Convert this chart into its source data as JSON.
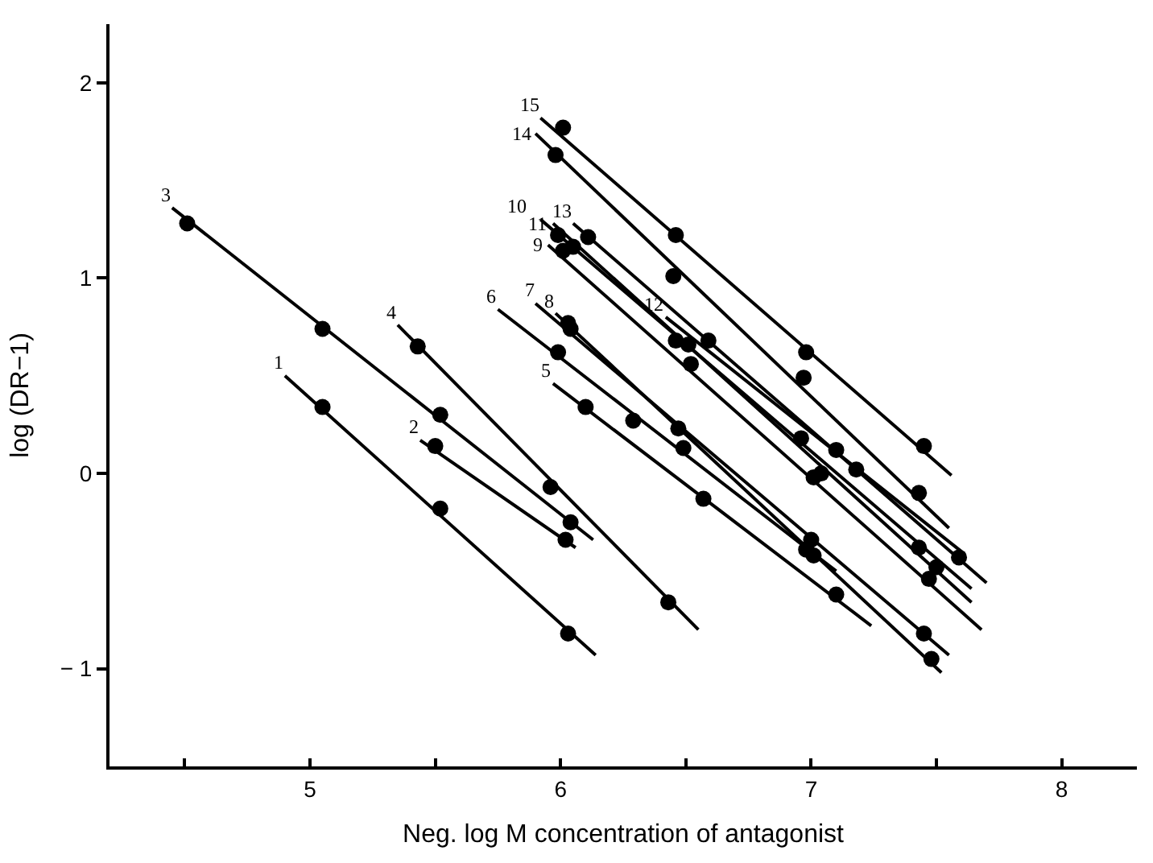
{
  "chart_data": {
    "type": "scatter",
    "xlabel": "Neg. log M concentration of antagonist",
    "ylabel": "log (DR−1)",
    "xlim": [
      4.2,
      8.3
    ],
    "ylim": [
      -1.5,
      2.3
    ],
    "xticks": [
      {
        "value": 4.5,
        "label": null
      },
      5,
      {
        "value": 5.5,
        "label": null
      },
      6,
      {
        "value": 6.5,
        "label": null
      },
      7,
      {
        "value": 7.5,
        "label": null
      },
      8
    ],
    "yticks": [
      -1,
      0,
      1,
      2
    ],
    "marker": "circle",
    "series": [
      {
        "name": "1",
        "type": "line",
        "marker": "none",
        "color": "#000000",
        "x": [
          4.9,
          6.14
        ],
        "values": [
          0.5,
          -0.93
        ]
      },
      {
        "color": "#000000",
        "x": [
          5.05,
          5.52,
          6.03
        ],
        "values": [
          0.34,
          -0.18,
          -0.82
        ]
      },
      {
        "name": "2",
        "type": "line",
        "marker": "none",
        "color": "#000000",
        "x": [
          5.44,
          6.06
        ],
        "values": [
          0.17,
          -0.38
        ]
      },
      {
        "color": "#000000",
        "x": [
          5.5,
          6.02
        ],
        "values": [
          0.14,
          -0.34
        ]
      },
      {
        "name": "3",
        "type": "line",
        "marker": "none",
        "color": "#000000",
        "x": [
          4.45,
          6.13
        ],
        "values": [
          1.36,
          -0.34
        ]
      },
      {
        "color": "#000000",
        "x": [
          4.51,
          5.05,
          5.52,
          6.04
        ],
        "values": [
          1.28,
          0.74,
          0.3,
          -0.25
        ]
      },
      {
        "name": "4",
        "type": "line",
        "marker": "none",
        "color": "#000000",
        "x": [
          5.35,
          6.55
        ],
        "values": [
          0.76,
          -0.8
        ]
      },
      {
        "color": "#000000",
        "x": [
          5.43,
          5.96,
          6.43
        ],
        "values": [
          0.65,
          -0.07,
          -0.66
        ]
      },
      {
        "name": "5",
        "type": "line",
        "marker": "none",
        "color": "#000000",
        "x": [
          5.97,
          7.24
        ],
        "values": [
          0.46,
          -0.78
        ]
      },
      {
        "color": "#000000",
        "x": [
          6.1,
          6.57,
          7.1
        ],
        "values": [
          0.34,
          -0.13,
          -0.62
        ]
      },
      {
        "name": "6",
        "type": "line",
        "marker": "none",
        "color": "#000000",
        "x": [
          5.75,
          7.1
        ],
        "values": [
          0.84,
          -0.5
        ]
      },
      {
        "color": "#000000",
        "x": [
          5.99,
          6.29,
          6.49,
          7.01
        ],
        "values": [
          0.62,
          0.27,
          0.13,
          -0.42
        ]
      },
      {
        "name": "7",
        "type": "line",
        "marker": "none",
        "color": "#000000",
        "x": [
          5.9,
          7.55
        ],
        "values": [
          0.87,
          -0.93
        ]
      },
      {
        "color": "#000000",
        "x": [
          6.03,
          6.47,
          7.0,
          7.45
        ],
        "values": [
          0.77,
          0.23,
          -0.34,
          -0.82
        ]
      },
      {
        "name": "8",
        "type": "line",
        "marker": "none",
        "color": "#000000",
        "x": [
          5.98,
          7.52
        ],
        "values": [
          0.82,
          -1.02
        ]
      },
      {
        "color": "#000000",
        "x": [
          6.04,
          6.98,
          7.48
        ],
        "values": [
          0.74,
          -0.39,
          -0.95
        ]
      },
      {
        "name": "9",
        "type": "line",
        "marker": "none",
        "color": "#000000",
        "x": [
          5.95,
          7.68
        ],
        "values": [
          1.17,
          -0.8
        ]
      },
      {
        "color": "#000000",
        "x": [
          6.01,
          6.52,
          7.01,
          7.47
        ],
        "values": [
          1.14,
          0.56,
          -0.02,
          -0.54
        ]
      },
      {
        "name": "10",
        "type": "line",
        "marker": "none",
        "color": "#000000",
        "x": [
          5.92,
          7.64
        ],
        "values": [
          1.3,
          -0.59
        ]
      },
      {
        "color": "#000000",
        "x": [
          5.99,
          6.46,
          6.96,
          7.43
        ],
        "values": [
          1.22,
          0.68,
          0.18,
          -0.38
        ]
      },
      {
        "name": "11",
        "type": "line",
        "marker": "none",
        "color": "#000000",
        "x": [
          5.97,
          7.64
        ],
        "values": [
          1.28,
          -0.66
        ]
      },
      {
        "color": "#000000",
        "x": [
          6.05,
          6.51,
          7.04,
          7.5
        ],
        "values": [
          1.16,
          0.66,
          0.0,
          -0.48
        ]
      },
      {
        "name": "12",
        "type": "line",
        "marker": "none",
        "color": "#000000",
        "x": [
          6.42,
          7.6
        ],
        "values": [
          0.8,
          -0.4
        ]
      },
      {
        "color": "#000000",
        "x": [
          7.1
        ],
        "values": [
          0.12
        ]
      },
      {
        "name": "13",
        "type": "line",
        "marker": "none",
        "color": "#000000",
        "x": [
          6.05,
          7.7
        ],
        "values": [
          1.28,
          -0.56
        ]
      },
      {
        "color": "#000000",
        "x": [
          6.11,
          6.59,
          7.18,
          7.59
        ],
        "values": [
          1.21,
          0.68,
          0.02,
          -0.43
        ]
      },
      {
        "name": "14",
        "type": "line",
        "marker": "none",
        "color": "#000000",
        "x": [
          5.9,
          7.55
        ],
        "values": [
          1.74,
          -0.28
        ]
      },
      {
        "color": "#000000",
        "x": [
          5.98,
          6.45,
          6.97,
          7.43
        ],
        "values": [
          1.63,
          1.01,
          0.49,
          -0.1
        ]
      },
      {
        "name": "15",
        "type": "line",
        "marker": "none",
        "color": "#000000",
        "x": [
          5.92,
          7.56
        ],
        "values": [
          1.82,
          -0.01
        ]
      },
      {
        "color": "#000000",
        "x": [
          6.01,
          6.46,
          6.98,
          7.45
        ],
        "values": [
          1.77,
          1.22,
          0.62,
          0.14
        ]
      }
    ]
  }
}
